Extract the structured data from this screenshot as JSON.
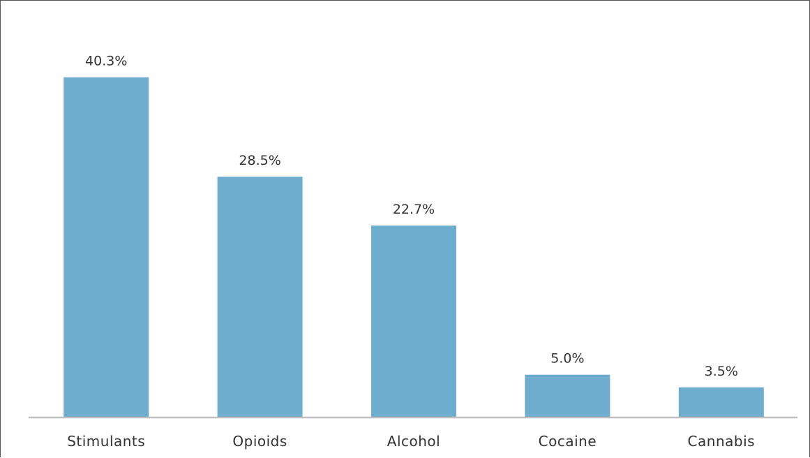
{
  "chart_data": {
    "type": "bar",
    "categories": [
      "Stimulants",
      "Opioids",
      "Alcohol",
      "Cocaine",
      "Cannabis"
    ],
    "values": [
      40.3,
      28.5,
      22.7,
      5.0,
      3.5
    ],
    "value_labels": [
      "40.3%",
      "28.5%",
      "22.7%",
      "5.0%",
      "3.5%"
    ],
    "ylim": [
      0,
      45
    ],
    "grid": false,
    "legend": "none",
    "colors": {
      "bar": "#6eadcd",
      "axis": "#bfbfbf",
      "text": "#333333"
    }
  }
}
